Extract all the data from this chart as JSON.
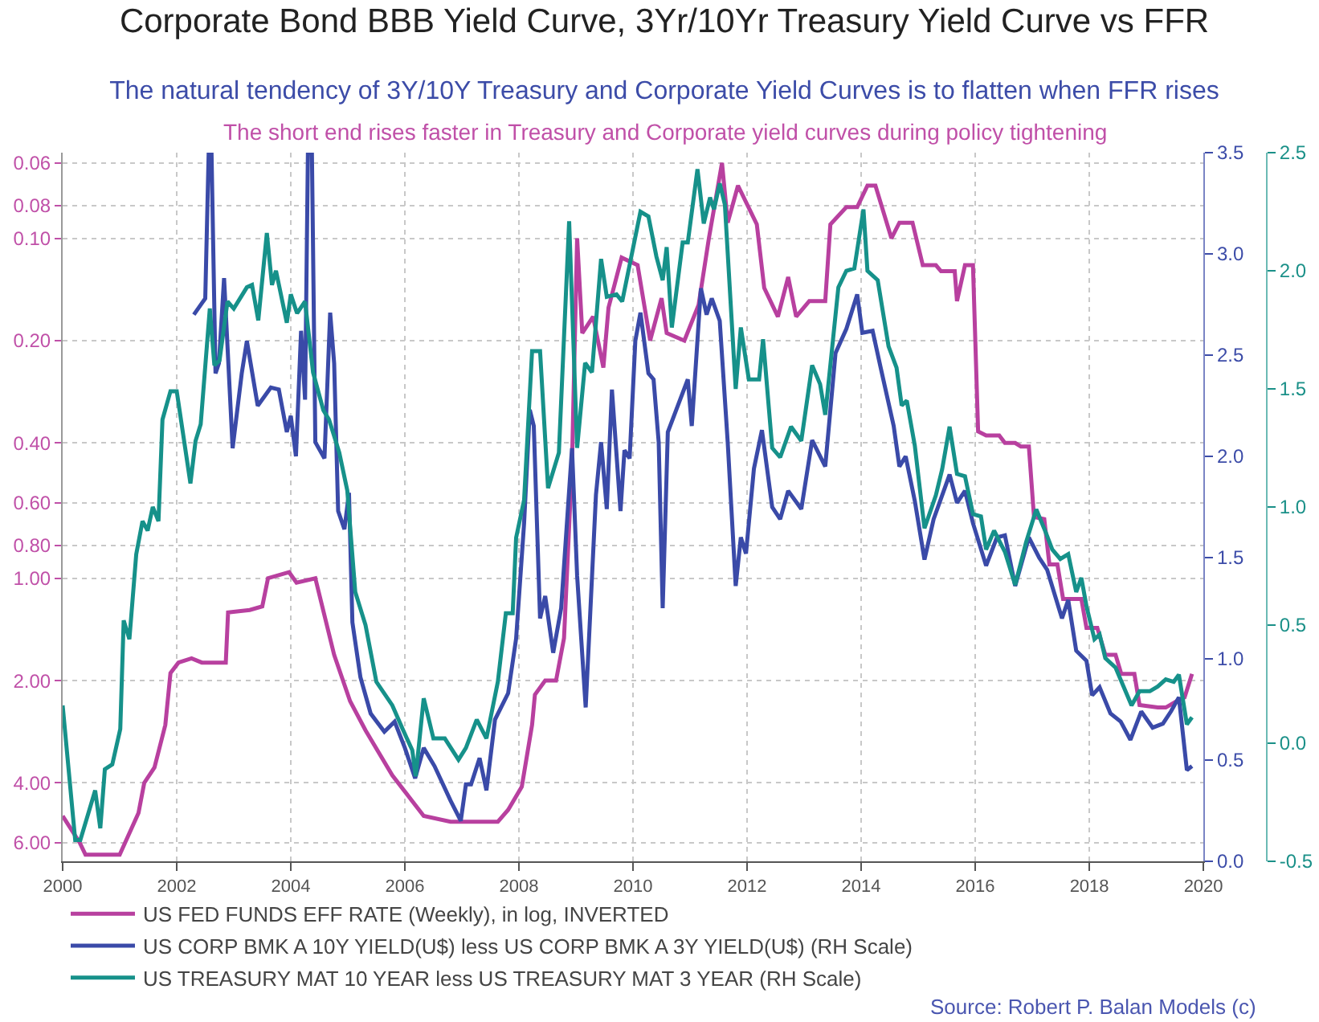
{
  "chart_data": {
    "type": "line",
    "title": "Corporate Bond BBB Yield Curve, 3Yr/10Yr Treasury Yield Curve vs FFR",
    "subtitle": "The natural tendency of 3Y/10Y Treasury and Corporate Yield Curves is to flatten when FFR rises",
    "annotations": [
      "The short end rises faster in Treasury and Corporate yield curves during policy tightening",
      "Source: Robert P. Balan Models (c)"
    ],
    "xlim": [
      2000,
      2020
    ],
    "xticks": [
      2000,
      2002,
      2004,
      2006,
      2008,
      2010,
      2012,
      2014,
      2016,
      2018,
      2020
    ],
    "log": "y",
    "ylim": [
      6.8,
      0.056
    ],
    "yticks": [
      {
        "value": 0.06,
        "label": "0.06"
      },
      {
        "value": 0.08,
        "label": "0.08"
      },
      {
        "value": 0.1,
        "label": "0.10"
      },
      {
        "value": 0.2,
        "label": "0.20"
      },
      {
        "value": 0.4,
        "label": "0.40"
      },
      {
        "value": 0.6,
        "label": "0.60"
      },
      {
        "value": 0.8,
        "label": "0.80"
      },
      {
        "value": 1,
        "label": "1.00"
      },
      {
        "value": 2,
        "label": "2.00"
      },
      {
        "value": 4,
        "label": "4.00"
      },
      {
        "value": 6,
        "label": "6.00"
      }
    ],
    "y2lim": [
      0,
      3.5
    ],
    "y2ticks": [
      {
        "value": 0,
        "label": "0.0"
      },
      0.5,
      {
        "value": 1,
        "label": "1.0"
      },
      1.5,
      {
        "value": 2,
        "label": "2.0"
      },
      2.5,
      {
        "value": 3,
        "label": "3.0"
      },
      3.5
    ],
    "y3lim": [
      -0.5,
      2.5
    ],
    "y3ticks": [
      -0.5,
      {
        "value": 0,
        "label": "0.0"
      },
      0.5,
      {
        "value": 1,
        "label": "1.0"
      },
      1.5,
      {
        "value": 2,
        "label": "2.0"
      },
      2.5
    ],
    "grid": true,
    "legend": "bottom",
    "line_style": "solid",
    "marker": "none",
    "series": [
      {
        "name": "US FED FUNDS EFF RATE (Weekly), in log, INVERTED",
        "color": "#b8409f",
        "x": [
          2000.0,
          2000.3,
          2000.4,
          2001.0,
          2001.33,
          2001.43,
          2001.61,
          2001.8,
          2001.89,
          2002.03,
          2002.26,
          2002.44,
          2002.86,
          2002.9,
          2003.28,
          2003.5,
          2003.6,
          2003.97,
          2004.1,
          2004.43,
          2004.76,
          2005.04,
          2005.31,
          2005.78,
          2006.33,
          2006.8,
          2007.63,
          2007.81,
          2008.05,
          2008.23,
          2008.28,
          2008.46,
          2008.65,
          2008.79,
          2008.93,
          2009.02,
          2009.11,
          2009.3,
          2009.48,
          2009.57,
          2009.8,
          2010.08,
          2010.3,
          2010.5,
          2010.59,
          2010.9,
          2011.15,
          2011.33,
          2011.56,
          2011.66,
          2011.84,
          2012.17,
          2012.3,
          2012.54,
          2012.72,
          2012.86,
          2013.09,
          2013.37,
          2013.46,
          2013.74,
          2013.93,
          2014.11,
          2014.25,
          2014.53,
          2014.67,
          2014.9,
          2015.08,
          2015.31,
          2015.4,
          2015.64,
          2015.68,
          2015.82,
          2015.96,
          2016.05,
          2016.19,
          2016.42,
          2016.52,
          2016.7,
          2016.8,
          2016.94,
          2017.03,
          2017.21,
          2017.3,
          2017.44,
          2017.54,
          2017.86,
          2017.95,
          2018.14,
          2018.28,
          2018.46,
          2018.56,
          2018.79,
          2018.88,
          2019.2,
          2019.34,
          2019.53,
          2019.67,
          2019.8
        ],
        "values": [
          5.0,
          6.0,
          6.5,
          6.5,
          4.9,
          4.0,
          3.6,
          2.7,
          1.9,
          1.77,
          1.72,
          1.77,
          1.77,
          1.26,
          1.24,
          1.21,
          1.0,
          0.96,
          1.03,
          1.0,
          1.68,
          2.3,
          2.8,
          3.8,
          5.0,
          5.2,
          5.2,
          4.8,
          4.1,
          2.7,
          2.2,
          2.0,
          2.0,
          1.5,
          0.46,
          0.1,
          0.19,
          0.17,
          0.24,
          0.16,
          0.114,
          0.12,
          0.2,
          0.15,
          0.19,
          0.2,
          0.157,
          0.1,
          0.06,
          0.09,
          0.07,
          0.091,
          0.14,
          0.17,
          0.13,
          0.17,
          0.153,
          0.153,
          0.091,
          0.081,
          0.081,
          0.07,
          0.07,
          0.1,
          0.09,
          0.09,
          0.12,
          0.12,
          0.125,
          0.125,
          0.153,
          0.12,
          0.12,
          0.37,
          0.38,
          0.38,
          0.4,
          0.4,
          0.41,
          0.41,
          0.66,
          0.67,
          0.91,
          0.91,
          1.15,
          1.15,
          1.4,
          1.4,
          1.68,
          1.68,
          1.91,
          1.91,
          2.36,
          2.4,
          2.4,
          2.3,
          2.24,
          1.91
        ]
      },
      {
        "name": "US CORP BMK A 10Y YIELD(U$) less US CORP BMK A 3Y YIELD(U$) (RH Scale)",
        "color": "#3a4aa8",
        "axis": "y2",
        "x": [
          2002.3,
          2002.5,
          2002.56,
          2002.61,
          2002.68,
          2002.74,
          2002.83,
          2002.98,
          2003.14,
          2003.23,
          2003.42,
          2003.65,
          2003.79,
          2003.93,
          2004.0,
          2004.09,
          2004.18,
          2004.25,
          2004.3,
          2004.37,
          2004.43,
          2004.59,
          2004.69,
          2004.76,
          2004.83,
          2004.94,
          2005.02,
          2005.08,
          2005.22,
          2005.4,
          2005.64,
          2005.82,
          2006.0,
          2006.18,
          2006.33,
          2006.52,
          2006.8,
          2006.98,
          2007.07,
          2007.16,
          2007.31,
          2007.43,
          2007.58,
          2007.81,
          2007.95,
          2008.09,
          2008.19,
          2008.26,
          2008.37,
          2008.46,
          2008.6,
          2008.74,
          2008.93,
          2009.02,
          2009.17,
          2009.35,
          2009.44,
          2009.54,
          2009.63,
          2009.78,
          2009.85,
          2009.94,
          2010.04,
          2010.13,
          2010.27,
          2010.36,
          2010.45,
          2010.52,
          2010.61,
          2010.96,
          2011.03,
          2011.19,
          2011.29,
          2011.38,
          2011.52,
          2011.66,
          2011.8,
          2011.89,
          2011.98,
          2012.12,
          2012.26,
          2012.44,
          2012.58,
          2012.72,
          2012.95,
          2013.14,
          2013.37,
          2013.55,
          2013.74,
          2013.93,
          2014.02,
          2014.2,
          2014.34,
          2014.57,
          2014.67,
          2014.78,
          2014.94,
          2015.11,
          2015.27,
          2015.55,
          2015.68,
          2015.82,
          2015.96,
          2016.19,
          2016.38,
          2016.52,
          2016.7,
          2016.94,
          2017.12,
          2017.26,
          2017.52,
          2017.63,
          2017.77,
          2017.95,
          2018.05,
          2018.18,
          2018.37,
          2018.55,
          2018.72,
          2018.91,
          2019.11,
          2019.29,
          2019.43,
          2019.57,
          2019.71,
          2019.8
        ],
        "values": [
          2.7,
          2.78,
          3.5,
          3.5,
          2.41,
          2.46,
          2.88,
          2.04,
          2.41,
          2.57,
          2.25,
          2.34,
          2.33,
          2.12,
          2.2,
          2.0,
          2.62,
          2.28,
          3.5,
          3.5,
          2.07,
          1.99,
          2.71,
          2.46,
          1.73,
          1.64,
          1.82,
          1.18,
          0.91,
          0.73,
          0.64,
          0.69,
          0.56,
          0.41,
          0.56,
          0.47,
          0.3,
          0.2,
          0.38,
          0.38,
          0.51,
          0.35,
          0.7,
          0.83,
          1.1,
          1.67,
          2.23,
          2.15,
          1.2,
          1.31,
          1.03,
          1.25,
          2.04,
          1.41,
          0.76,
          1.81,
          2.07,
          1.74,
          2.33,
          1.73,
          2.03,
          1.99,
          2.57,
          2.71,
          2.41,
          2.38,
          2.07,
          1.25,
          2.12,
          2.38,
          2.15,
          2.83,
          2.7,
          2.78,
          2.67,
          2.07,
          1.36,
          1.6,
          1.52,
          1.94,
          2.13,
          1.75,
          1.69,
          1.83,
          1.74,
          2.08,
          1.95,
          2.51,
          2.63,
          2.8,
          2.61,
          2.62,
          2.44,
          2.15,
          1.95,
          2.0,
          1.78,
          1.49,
          1.69,
          1.91,
          1.77,
          1.83,
          1.67,
          1.46,
          1.6,
          1.61,
          1.36,
          1.6,
          1.5,
          1.44,
          1.2,
          1.29,
          1.04,
          0.99,
          0.82,
          0.86,
          0.73,
          0.69,
          0.6,
          0.74,
          0.66,
          0.68,
          0.74,
          0.81,
          0.45,
          0.47
        ]
      },
      {
        "name": "US TREASURY MAT 10 YEAR less US TREASURY MAT 3 YEAR (RH Scale)",
        "color": "#16918a",
        "axis": "y3",
        "x": [
          2000.0,
          2000.22,
          2000.31,
          2000.57,
          2000.66,
          2000.74,
          2000.87,
          2001.01,
          2001.07,
          2001.17,
          2001.29,
          2001.4,
          2001.49,
          2001.58,
          2001.68,
          2001.75,
          2001.89,
          2002.0,
          2002.24,
          2002.33,
          2002.42,
          2002.58,
          2002.66,
          2002.75,
          2002.89,
          2003.0,
          2003.23,
          2003.32,
          2003.43,
          2003.58,
          2003.67,
          2003.74,
          2003.93,
          2004.0,
          2004.11,
          2004.25,
          2004.39,
          2004.57,
          2004.67,
          2004.85,
          2004.99,
          2005.13,
          2005.31,
          2005.5,
          2005.78,
          2005.96,
          2006.13,
          2006.19,
          2006.33,
          2006.5,
          2006.7,
          2006.94,
          2007.07,
          2007.26,
          2007.43,
          2007.63,
          2007.77,
          2007.89,
          2007.95,
          2008.09,
          2008.23,
          2008.37,
          2008.51,
          2008.7,
          2008.88,
          2009.02,
          2009.16,
          2009.28,
          2009.44,
          2009.54,
          2009.71,
          2009.81,
          2010.13,
          2010.27,
          2010.41,
          2010.52,
          2010.59,
          2010.68,
          2010.87,
          2010.96,
          2011.13,
          2011.24,
          2011.35,
          2011.42,
          2011.52,
          2011.61,
          2011.8,
          2011.89,
          2012.03,
          2012.21,
          2012.28,
          2012.44,
          2012.58,
          2012.77,
          2012.95,
          2013.14,
          2013.28,
          2013.37,
          2013.6,
          2013.74,
          2013.88,
          2014.04,
          2014.11,
          2014.29,
          2014.48,
          2014.62,
          2014.71,
          2014.8,
          2014.94,
          2015.11,
          2015.31,
          2015.42,
          2015.55,
          2015.68,
          2015.82,
          2015.96,
          2016.1,
          2016.19,
          2016.33,
          2016.52,
          2016.7,
          2016.89,
          2017.07,
          2017.24,
          2017.35,
          2017.49,
          2017.63,
          2017.77,
          2017.86,
          2017.95,
          2018.09,
          2018.18,
          2018.28,
          2018.46,
          2018.6,
          2018.74,
          2018.88,
          2019.06,
          2019.2,
          2019.34,
          2019.48,
          2019.57,
          2019.71,
          2019.8
        ],
        "values": [
          0.16,
          -0.41,
          -0.41,
          -0.2,
          -0.36,
          -0.11,
          -0.09,
          0.06,
          0.52,
          0.44,
          0.8,
          0.94,
          0.9,
          1.0,
          0.94,
          1.37,
          1.49,
          1.49,
          1.1,
          1.28,
          1.35,
          1.84,
          1.6,
          1.62,
          1.87,
          1.84,
          1.93,
          1.94,
          1.79,
          2.16,
          1.94,
          2.0,
          1.78,
          1.9,
          1.82,
          1.87,
          1.57,
          1.41,
          1.37,
          1.23,
          1.07,
          0.64,
          0.5,
          0.26,
          0.16,
          0.06,
          -0.03,
          -0.14,
          0.19,
          0.02,
          0.02,
          -0.07,
          -0.02,
          0.1,
          0.02,
          0.26,
          0.55,
          0.55,
          0.87,
          1.03,
          1.66,
          1.66,
          1.08,
          1.23,
          2.21,
          1.25,
          1.61,
          1.57,
          2.05,
          1.89,
          1.9,
          1.87,
          2.25,
          2.23,
          2.06,
          1.96,
          2.1,
          1.76,
          2.12,
          2.12,
          2.43,
          2.2,
          2.31,
          2.26,
          2.37,
          2.28,
          1.5,
          1.76,
          1.54,
          1.54,
          1.71,
          1.25,
          1.21,
          1.34,
          1.28,
          1.6,
          1.52,
          1.39,
          1.93,
          2.0,
          2.01,
          2.26,
          2.0,
          1.96,
          1.68,
          1.59,
          1.43,
          1.45,
          1.26,
          0.91,
          1.05,
          1.16,
          1.34,
          1.14,
          1.13,
          0.97,
          0.96,
          0.82,
          0.9,
          0.81,
          0.67,
          0.85,
          0.99,
          0.89,
          0.82,
          0.78,
          0.8,
          0.64,
          0.7,
          0.58,
          0.44,
          0.46,
          0.36,
          0.32,
          0.24,
          0.16,
          0.22,
          0.22,
          0.24,
          0.27,
          0.26,
          0.29,
          0.08,
          0.11
        ]
      }
    ]
  }
}
